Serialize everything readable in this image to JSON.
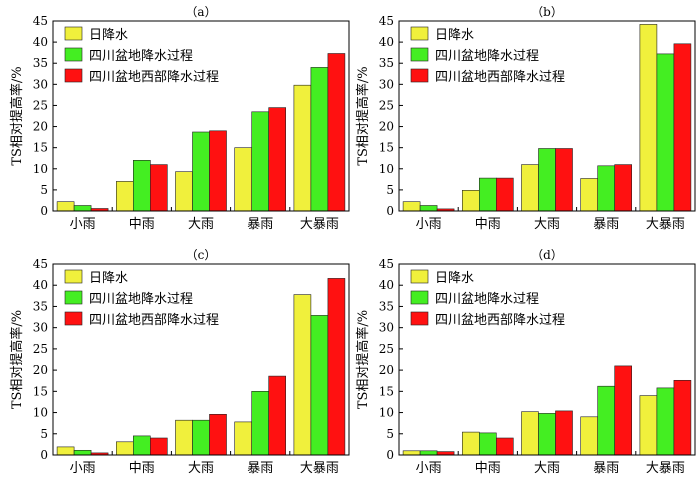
{
  "chart_data": [
    {
      "type": "bar",
      "panel_label": "（a）",
      "ylabel": "TS相对提高率/%",
      "ylim": [
        0,
        45
      ],
      "yticks": [
        "0",
        "5",
        "10",
        "15",
        "20",
        "25",
        "30",
        "35",
        "40",
        "45"
      ],
      "categories": [
        "小雨",
        "中雨",
        "大雨",
        "暴雨",
        "大暴雨"
      ],
      "legend_position": "top-left",
      "series": [
        {
          "name": "日降水",
          "color": "#f0f03c",
          "values": [
            2.2,
            7.0,
            9.3,
            15.0,
            29.8
          ]
        },
        {
          "name": "四川盆地降水过程",
          "color": "#44ee22",
          "values": [
            1.3,
            12.0,
            18.7,
            23.5,
            34.0
          ]
        },
        {
          "name": "四川盆地西部降水过程",
          "color": "#ff1111",
          "values": [
            0.6,
            11.0,
            19.0,
            24.5,
            37.3
          ]
        }
      ]
    },
    {
      "type": "bar",
      "panel_label": "（b）",
      "ylabel": "TS相对提高率/%",
      "ylim": [
        0,
        45
      ],
      "yticks": [
        "0",
        "5",
        "10",
        "15",
        "20",
        "25",
        "30",
        "35",
        "40",
        "45"
      ],
      "categories": [
        "小雨",
        "中雨",
        "大雨",
        "暴雨",
        "大暴雨"
      ],
      "legend_position": "top-left",
      "series": [
        {
          "name": "日降水",
          "color": "#f0f03c",
          "values": [
            2.2,
            4.9,
            11.0,
            7.7,
            44.2
          ]
        },
        {
          "name": "四川盆地降水过程",
          "color": "#44ee22",
          "values": [
            1.3,
            7.8,
            14.8,
            10.7,
            37.2
          ]
        },
        {
          "name": "四川盆地西部降水过程",
          "color": "#ff1111",
          "values": [
            0.5,
            7.8,
            14.8,
            11.0,
            39.6
          ]
        }
      ]
    },
    {
      "type": "bar",
      "panel_label": "（c）",
      "ylabel": "TS相对提高率/%",
      "ylim": [
        0,
        45
      ],
      "yticks": [
        "0",
        "5",
        "10",
        "15",
        "20",
        "25",
        "30",
        "35",
        "40",
        "45"
      ],
      "categories": [
        "小雨",
        "中雨",
        "大雨",
        "暴雨",
        "大暴雨"
      ],
      "legend_position": "top-left",
      "series": [
        {
          "name": "日降水",
          "color": "#f0f03c",
          "values": [
            1.9,
            3.1,
            8.2,
            7.8,
            37.8
          ]
        },
        {
          "name": "四川盆地降水过程",
          "color": "#44ee22",
          "values": [
            1.1,
            4.5,
            8.2,
            15.0,
            32.9
          ]
        },
        {
          "name": "四川盆地西部降水过程",
          "color": "#ff1111",
          "values": [
            0.5,
            4.0,
            9.6,
            18.6,
            41.6
          ]
        }
      ]
    },
    {
      "type": "bar",
      "panel_label": "（d）",
      "ylabel": "TS相对提高率/%",
      "ylim": [
        0,
        45
      ],
      "yticks": [
        "0",
        "5",
        "10",
        "15",
        "20",
        "25",
        "30",
        "35",
        "40",
        "45"
      ],
      "categories": [
        "小雨",
        "中雨",
        "大雨",
        "暴雨",
        "大暴雨"
      ],
      "legend_position": "top-left",
      "series": [
        {
          "name": "日降水",
          "color": "#f0f03c",
          "values": [
            1.0,
            5.4,
            10.2,
            9.0,
            14.0
          ]
        },
        {
          "name": "四川盆地降水过程",
          "color": "#44ee22",
          "values": [
            1.0,
            5.2,
            9.8,
            16.2,
            15.8
          ]
        },
        {
          "name": "四川盆地西部降水过程",
          "color": "#ff1111",
          "values": [
            0.8,
            4.0,
            10.4,
            21.0,
            17.6
          ]
        }
      ]
    }
  ]
}
